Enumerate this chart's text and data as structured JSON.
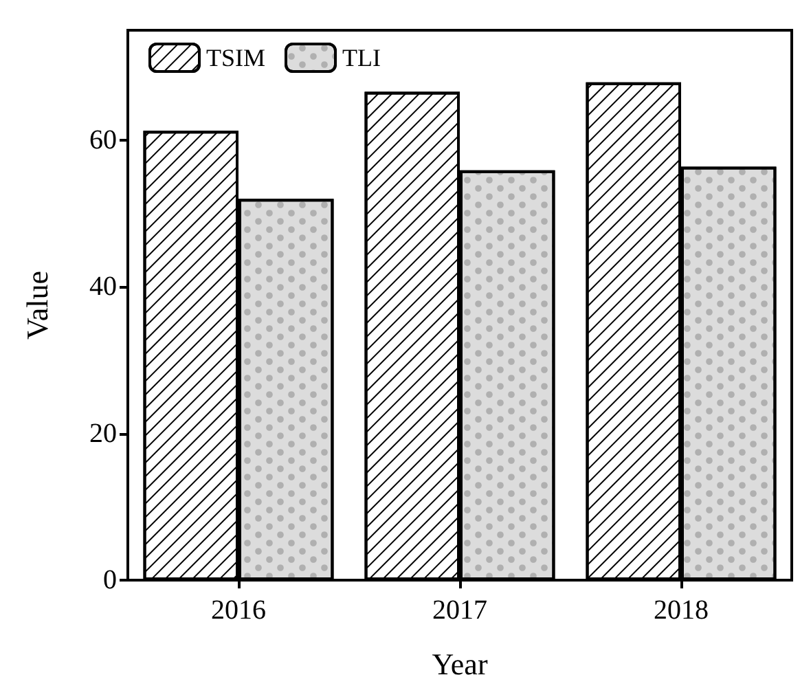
{
  "chart_data": {
    "type": "bar",
    "xlabel": "Year",
    "ylabel": "Value",
    "categories": [
      "2016",
      "2017",
      "2018"
    ],
    "series": [
      {
        "name": "TSIM",
        "color": "#ffffff",
        "values": [
          61.3,
          66.6,
          67.9
        ]
      },
      {
        "name": "TLI",
        "color": "#dcdcdc",
        "values": [
          52.0,
          55.9,
          56.4
        ]
      }
    ],
    "ylim": [
      0,
      75
    ],
    "yticks": [
      0,
      20,
      40,
      60
    ],
    "grid": false,
    "legend": "top left"
  }
}
